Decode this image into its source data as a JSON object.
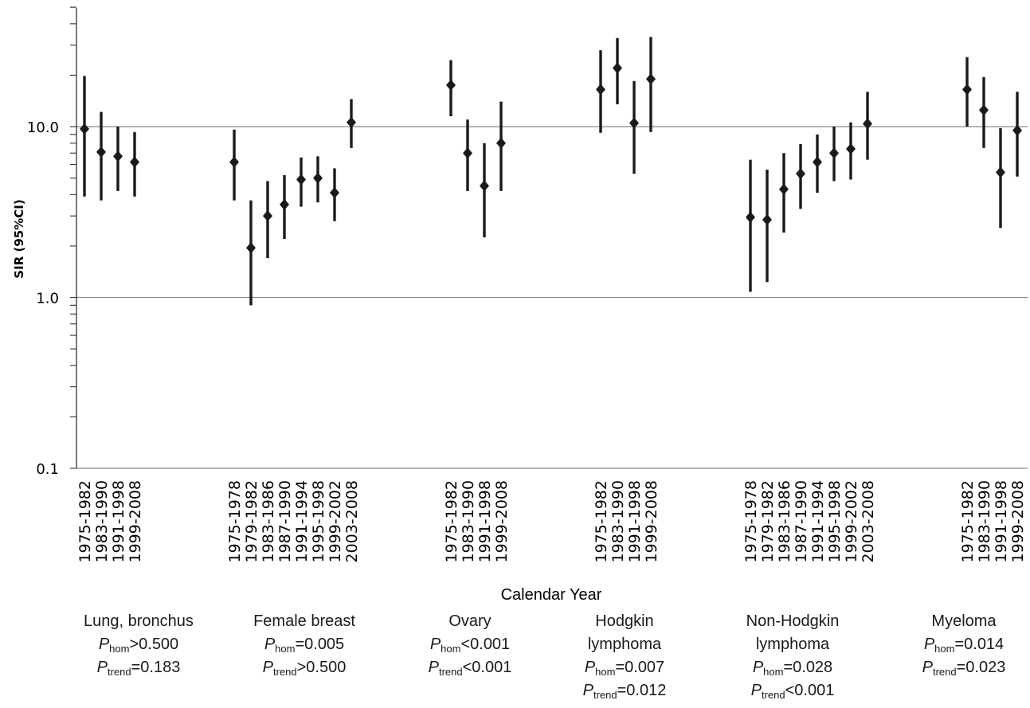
{
  "chart_data": {
    "type": "scatter",
    "subtype": "forest-plot",
    "title": "",
    "xlabel": "Calendar Year",
    "ylabel": "SIR (95%CI)",
    "yscale": "log",
    "ylim": [
      0.1,
      50
    ],
    "yticks": [
      "0.1",
      "1.0",
      "10.0"
    ],
    "grid": "horizontal at 1.0 and 10.0",
    "marker": "diamond",
    "groups": [
      {
        "name": "Lung, bronchus",
        "name_lines": [
          "Lung, bronchus"
        ],
        "p_hom": {
          "op": ">",
          "value": "0.500"
        },
        "p_trend": {
          "op": "=",
          "value": "0.183"
        },
        "periods": [
          "1975-1982",
          "1983-1990",
          "1991-1998",
          "1999-2008"
        ],
        "sir": [
          9.7,
          7.1,
          6.7,
          6.2
        ],
        "ci_low": [
          3.9,
          3.7,
          4.2,
          3.9
        ],
        "ci_high": [
          19.8,
          12.2,
          10.0,
          9.3
        ]
      },
      {
        "name": "Female breast",
        "name_lines": [
          "Female breast"
        ],
        "p_hom": {
          "op": "=",
          "value": "0.005"
        },
        "p_trend": {
          "op": ">",
          "value": "0.500"
        },
        "periods": [
          "1975-1978",
          "1979-1982",
          "1983-1986",
          "1987-1990",
          "1991-1994",
          "1995-1998",
          "1999-2002",
          "2003-2008"
        ],
        "sir": [
          6.2,
          1.95,
          3.0,
          3.5,
          4.9,
          5.0,
          4.1,
          10.6
        ],
        "ci_low": [
          3.7,
          0.9,
          1.7,
          2.2,
          3.4,
          3.6,
          2.8,
          7.5
        ],
        "ci_high": [
          9.6,
          3.7,
          4.8,
          5.2,
          6.6,
          6.7,
          5.7,
          14.5
        ]
      },
      {
        "name": "Ovary",
        "name_lines": [
          "Ovary"
        ],
        "p_hom": {
          "op": "<",
          "value": "0.001"
        },
        "p_trend": {
          "op": "<",
          "value": "0.001"
        },
        "periods": [
          "1975-1982",
          "1983-1990",
          "1991-1998",
          "1999-2008"
        ],
        "sir": [
          17.5,
          7.0,
          4.5,
          8.0
        ],
        "ci_low": [
          11.5,
          4.2,
          2.25,
          4.2
        ],
        "ci_high": [
          24.5,
          11.0,
          8.0,
          14.0
        ]
      },
      {
        "name": "Hodgkin lymphoma",
        "name_lines": [
          "Hodgkin",
          "lymphoma"
        ],
        "p_hom": {
          "op": "=",
          "value": "0.007"
        },
        "p_trend": {
          "op": "=",
          "value": "0.012"
        },
        "periods": [
          "1975-1982",
          "1983-1990",
          "1991-1998",
          "1999-2008"
        ],
        "sir": [
          16.5,
          22.0,
          10.5,
          19.0
        ],
        "ci_low": [
          9.2,
          13.5,
          5.3,
          9.3
        ],
        "ci_high": [
          28.0,
          33.0,
          18.5,
          33.5
        ]
      },
      {
        "name": "Non-Hodgkin lymphoma",
        "name_lines": [
          "Non-Hodgkin",
          "lymphoma"
        ],
        "p_hom": {
          "op": "=",
          "value": "0.028"
        },
        "p_trend": {
          "op": "<",
          "value": "0.001"
        },
        "periods": [
          "1975-1978",
          "1979-1982",
          "1983-1986",
          "1987-1990",
          "1991-1994",
          "1995-1998",
          "1999-2002",
          "2003-2008"
        ],
        "sir": [
          2.95,
          2.85,
          4.3,
          5.3,
          6.2,
          7.0,
          7.4,
          10.4
        ],
        "ci_low": [
          1.08,
          1.23,
          2.4,
          3.3,
          4.1,
          4.8,
          4.9,
          6.4
        ],
        "ci_high": [
          6.4,
          5.6,
          7.0,
          7.9,
          9.0,
          10.0,
          10.6,
          16.0
        ]
      },
      {
        "name": "Myeloma",
        "name_lines": [
          "Myeloma"
        ],
        "p_hom": {
          "op": "=",
          "value": "0.014"
        },
        "p_trend": {
          "op": "=",
          "value": "0.023"
        },
        "periods": [
          "1975-1982",
          "1983-1990",
          "1991-1998",
          "1999-2008"
        ],
        "sir": [
          16.5,
          12.5,
          5.4,
          9.5
        ],
        "ci_low": [
          10.0,
          7.5,
          2.55,
          5.1
        ],
        "ci_high": [
          25.5,
          19.5,
          9.8,
          16.0
        ]
      }
    ]
  }
}
